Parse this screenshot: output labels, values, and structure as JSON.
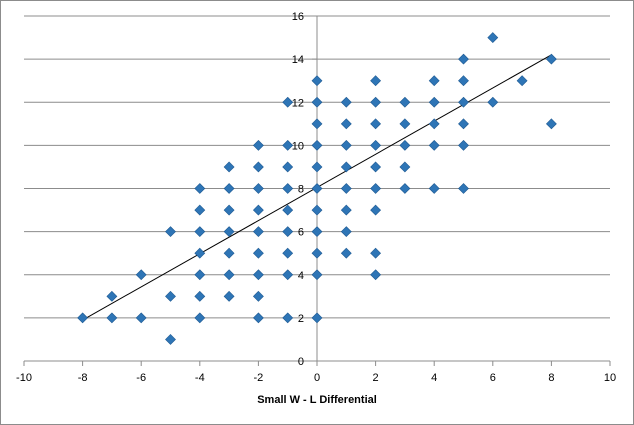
{
  "chart_data": {
    "type": "scatter",
    "title": "",
    "xlabel": "Small W - L Differential",
    "ylabel": "",
    "xlim": [
      -10,
      10
    ],
    "ylim": [
      0,
      16
    ],
    "x_ticks": [
      -10,
      -8,
      -6,
      -4,
      -2,
      0,
      2,
      4,
      6,
      8,
      10
    ],
    "y_ticks": [
      0,
      2,
      4,
      6,
      8,
      10,
      12,
      14,
      16
    ],
    "grid": "horizontal major gridlines",
    "legend": "none",
    "marker": "diamond",
    "marker_color": "#2E75B6",
    "gridline_color": "#8c8c8c",
    "trendline": {
      "type": "linear",
      "from": [
        -8,
        1.9
      ],
      "to": [
        8,
        14.2
      ],
      "color": "#000000"
    },
    "points": [
      [
        -8,
        2
      ],
      [
        -7,
        2
      ],
      [
        -7,
        3
      ],
      [
        -6,
        2
      ],
      [
        -6,
        4
      ],
      [
        -5,
        1
      ],
      [
        -5,
        3
      ],
      [
        -5,
        6
      ],
      [
        -4,
        2
      ],
      [
        -4,
        3
      ],
      [
        -4,
        4
      ],
      [
        -4,
        5
      ],
      [
        -4,
        6
      ],
      [
        -4,
        7
      ],
      [
        -4,
        8
      ],
      [
        -3,
        3
      ],
      [
        -3,
        4
      ],
      [
        -3,
        5
      ],
      [
        -3,
        6
      ],
      [
        -3,
        7
      ],
      [
        -3,
        8
      ],
      [
        -3,
        9
      ],
      [
        -2,
        2
      ],
      [
        -2,
        3
      ],
      [
        -2,
        4
      ],
      [
        -2,
        5
      ],
      [
        -2,
        6
      ],
      [
        -2,
        7
      ],
      [
        -2,
        8
      ],
      [
        -2,
        9
      ],
      [
        -2,
        10
      ],
      [
        -1,
        2
      ],
      [
        -1,
        4
      ],
      [
        -1,
        5
      ],
      [
        -1,
        6
      ],
      [
        -1,
        7
      ],
      [
        -1,
        8
      ],
      [
        -1,
        9
      ],
      [
        -1,
        10
      ],
      [
        -1,
        12
      ],
      [
        0,
        2
      ],
      [
        0,
        4
      ],
      [
        0,
        5
      ],
      [
        0,
        6
      ],
      [
        0,
        7
      ],
      [
        0,
        8
      ],
      [
        0,
        9
      ],
      [
        0,
        10
      ],
      [
        0,
        11
      ],
      [
        0,
        12
      ],
      [
        0,
        13
      ],
      [
        1,
        5
      ],
      [
        1,
        6
      ],
      [
        1,
        7
      ],
      [
        1,
        8
      ],
      [
        1,
        9
      ],
      [
        1,
        10
      ],
      [
        1,
        11
      ],
      [
        1,
        12
      ],
      [
        2,
        4
      ],
      [
        2,
        5
      ],
      [
        2,
        7
      ],
      [
        2,
        8
      ],
      [
        2,
        9
      ],
      [
        2,
        10
      ],
      [
        2,
        11
      ],
      [
        2,
        12
      ],
      [
        2,
        13
      ],
      [
        3,
        8
      ],
      [
        3,
        9
      ],
      [
        3,
        10
      ],
      [
        3,
        11
      ],
      [
        3,
        12
      ],
      [
        4,
        8
      ],
      [
        4,
        10
      ],
      [
        4,
        11
      ],
      [
        4,
        12
      ],
      [
        4,
        13
      ],
      [
        5,
        8
      ],
      [
        5,
        10
      ],
      [
        5,
        11
      ],
      [
        5,
        12
      ],
      [
        5,
        13
      ],
      [
        5,
        14
      ],
      [
        6,
        12
      ],
      [
        6,
        15
      ],
      [
        7,
        13
      ],
      [
        8,
        11
      ],
      [
        8,
        14
      ]
    ]
  }
}
